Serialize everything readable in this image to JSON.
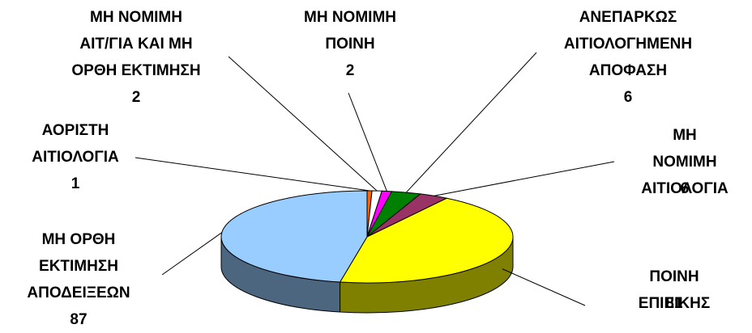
{
  "chart_data": {
    "type": "pie3d",
    "categories": [
      "ΑΟΡΙΣΤΗ\nΑΙΤΙΟΛΟΓΙΑ",
      "ΜΗ ΝΟΜΙΜΗ\nΑΙΤ/ΓΙΑ ΚΑΙ ΜΗ\nΟΡΘΗ ΕΚΤΙΜΗΣΗ",
      "ΜΗ ΝΟΜΙΜΗ\nΠΟΙΝΗ",
      "ΑΝΕΠΑΡΚΩΣ\nΑΙΤΙΟΛΟΓΗΜΕΝΗ\nΑΠΟΦΑΣΗ",
      "ΜΗ ΝΟΜΙΜΗ\nΑΙΤΙΟΛΟΓΙΑ",
      "ΠΟΙΝΗ ΕΠΙΕΙΚΗΣ",
      "ΜΗ ΟΡΘΗ\nΕΚΤΙΜΗΣΗ\nΑΠΟΔΕΙΞΕΩΝ"
    ],
    "values": [
      1,
      2,
      2,
      6,
      6,
      81,
      87
    ],
    "colors": [
      "#ff6600",
      "#ffffff",
      "#ff00ff",
      "#008000",
      "#993366",
      "#ffff00",
      "#99ccff"
    ]
  }
}
